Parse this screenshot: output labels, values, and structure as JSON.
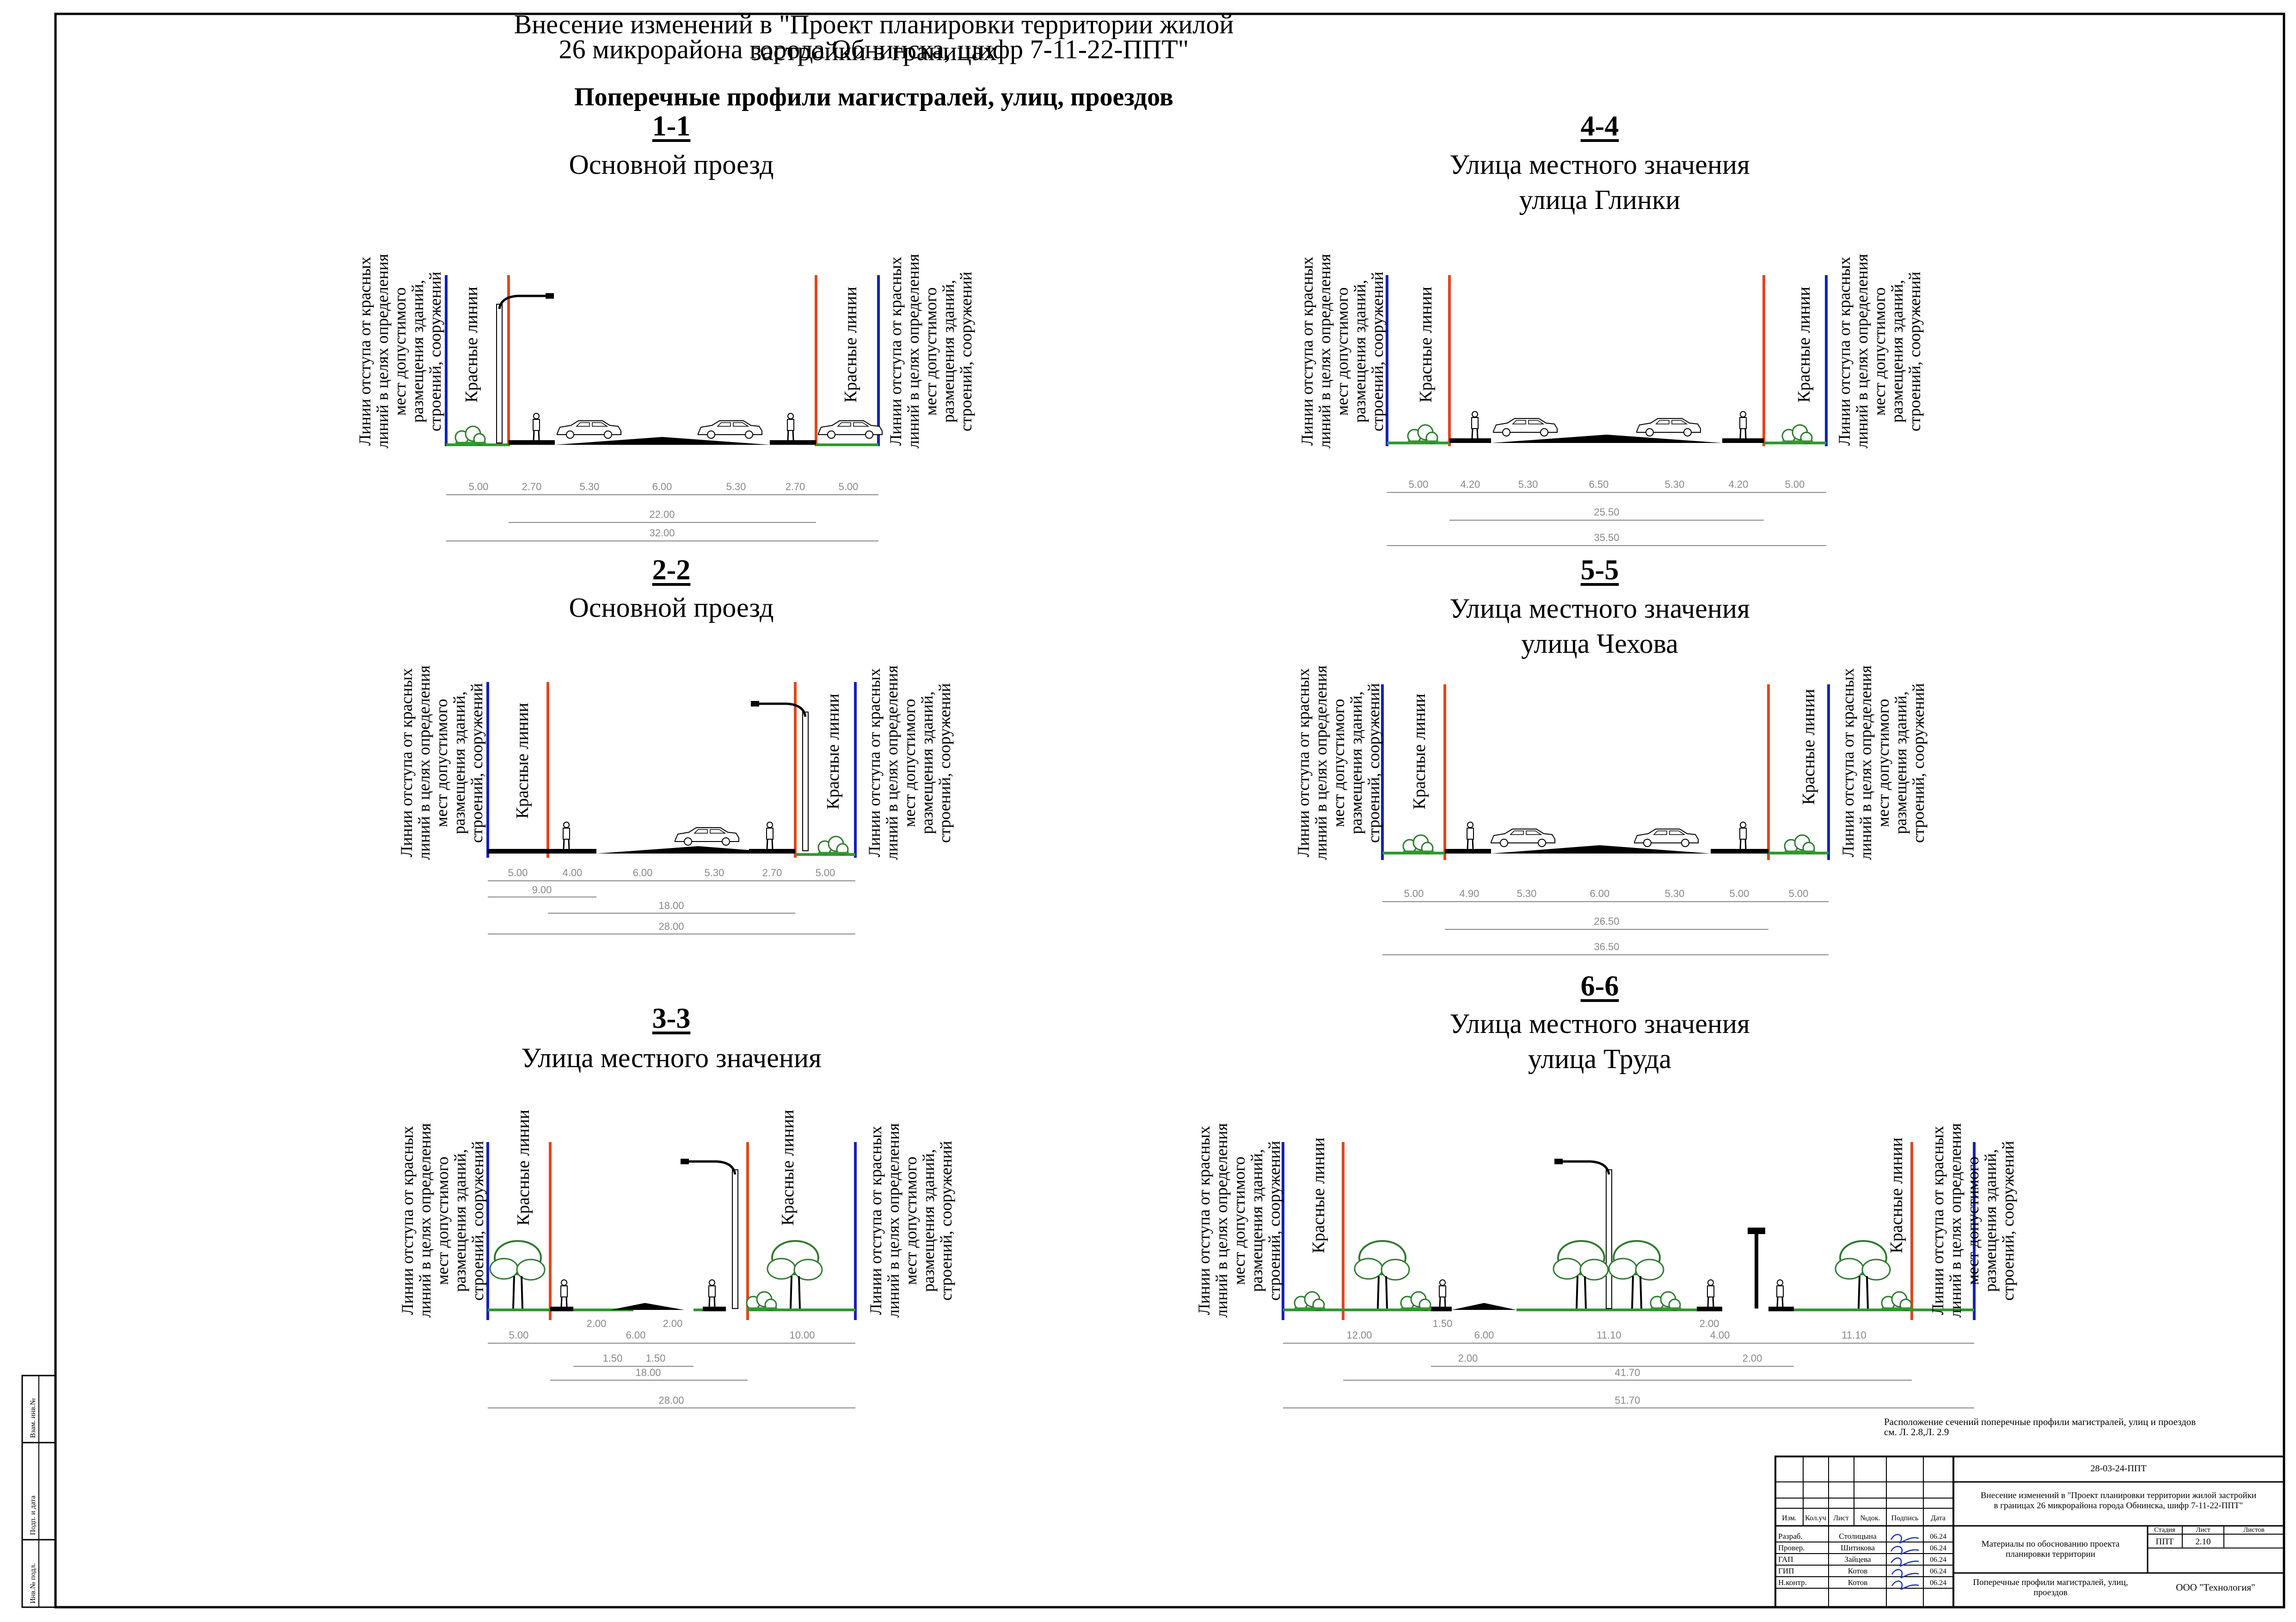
{
  "header": {
    "title_line1": "Внесение изменений в \"Проект планировки территории жилой застройки  в границах",
    "title_line2": "26 микрорайона города Обнинска, шифр 7-11-22-ППТ\"",
    "subtitle": "Поперечные профили магистралей, улиц, проездов"
  },
  "labels": {
    "red_lines": "Красные линии",
    "setback": "Линии отступа от красных\nлиний в целях определения\nмест допустимого\nразмещения зданий,\nстроений, сооружений"
  },
  "profiles": [
    {
      "id": "1-1",
      "name_line1": "Основной проезд",
      "name_line2": "",
      "dims_row1": [
        "5.00",
        "2.70",
        "5.30",
        "6.00",
        "5.30",
        "2.70",
        "5.00"
      ],
      "dims_row2": [
        "22.00"
      ],
      "dims_row3": [
        "32.00"
      ]
    },
    {
      "id": "2-2",
      "name_line1": "Основной проезд",
      "name_line2": "",
      "dims_row1": [
        "5.00",
        "4.00",
        "6.00",
        "5.30",
        "2.70",
        "5.00"
      ],
      "dims_row2": [
        "9.00"
      ],
      "dims_row3": [
        "18.00"
      ],
      "dims_row4": [
        "28.00"
      ]
    },
    {
      "id": "3-3",
      "name_line1": "Улица местного значения",
      "name_line2": "",
      "dims_row1": [
        "5.00",
        "2.00",
        "6.00",
        "2.00",
        "10.00"
      ],
      "dims_row2": [
        "1.50",
        "1.50"
      ],
      "dims_row3": [
        "18.00"
      ],
      "dims_row4": [
        "28.00"
      ]
    },
    {
      "id": "4-4",
      "name_line1": "Улица местного значения",
      "name_line2": "улица Глинки",
      "dims_row1": [
        "5.00",
        "4.20",
        "5.30",
        "6.50",
        "5.30",
        "4.20",
        "5.00"
      ],
      "dims_row2": [
        "25.50"
      ],
      "dims_row3": [
        "35.50"
      ]
    },
    {
      "id": "5-5",
      "name_line1": "Улица местного значения",
      "name_line2": "улица Чехова",
      "dims_row1": [
        "5.00",
        "4.90",
        "5.30",
        "6.00",
        "5.30",
        "5.00",
        "5.00"
      ],
      "dims_row2": [
        "26.50"
      ],
      "dims_row3": [
        "36.50"
      ]
    },
    {
      "id": "6-6",
      "name_line1": "Улица местного значения",
      "name_line2": "улица Труда",
      "dims_row1": [
        "12.00",
        "1.50",
        "6.00",
        "11.10",
        "2.00",
        "4.00",
        "11.10"
      ],
      "dims_row2": [
        "2.00",
        "2.00"
      ],
      "dims_row3": [
        "41.70"
      ],
      "dims_row4": [
        "51.70"
      ]
    }
  ],
  "note": {
    "line1": "Расположение сечений поперечные профили магистралей, улиц и проездов",
    "line2": "см. Л. 2.8,Л. 2.9"
  },
  "left_strip": [
    "Взам. инв.№",
    "Подп. и дата",
    "Инв.№ подл."
  ],
  "stamp": {
    "code": "28-03-24-ППТ",
    "project_line1": "Внесение изменений в \"Проект планировки территории жилой застройки",
    "project_line2": "в границах 26 микрорайона города Обнинска, шифр 7-11-22-ППТ\"",
    "col_headers": [
      "Изм.",
      "Кол.уч",
      "Лист",
      "№док.",
      "Подпись",
      "Дата"
    ],
    "people": [
      {
        "role": "Разраб.",
        "name": "Столицына",
        "date": "06.24"
      },
      {
        "role": "Провер.",
        "name": "Шитикова",
        "date": "06.24"
      },
      {
        "role": "ГАП",
        "name": "Зайцева",
        "date": "06.24"
      },
      {
        "role": "ГИП",
        "name": "Котов",
        "date": "06.24"
      },
      {
        "role": "Н.контр.",
        "name": "Котов",
        "date": "06.24"
      }
    ],
    "materials_line1": "Материалы по обоснованию проекта",
    "materials_line2": "планировки территории",
    "stage_headers": [
      "Стадия",
      "Лист",
      "Листов"
    ],
    "stage": "ППТ",
    "sheet": "2.10",
    "sheets": "",
    "drawing_line1": "Поперечные профили магистралей, улиц,",
    "drawing_line2": "проездов",
    "company": "ООО \"Технология\""
  },
  "colors": {
    "red_line": "#e0471f",
    "blue_line": "#1421b8",
    "green": "#2f9a2f",
    "dim": "#888888"
  }
}
